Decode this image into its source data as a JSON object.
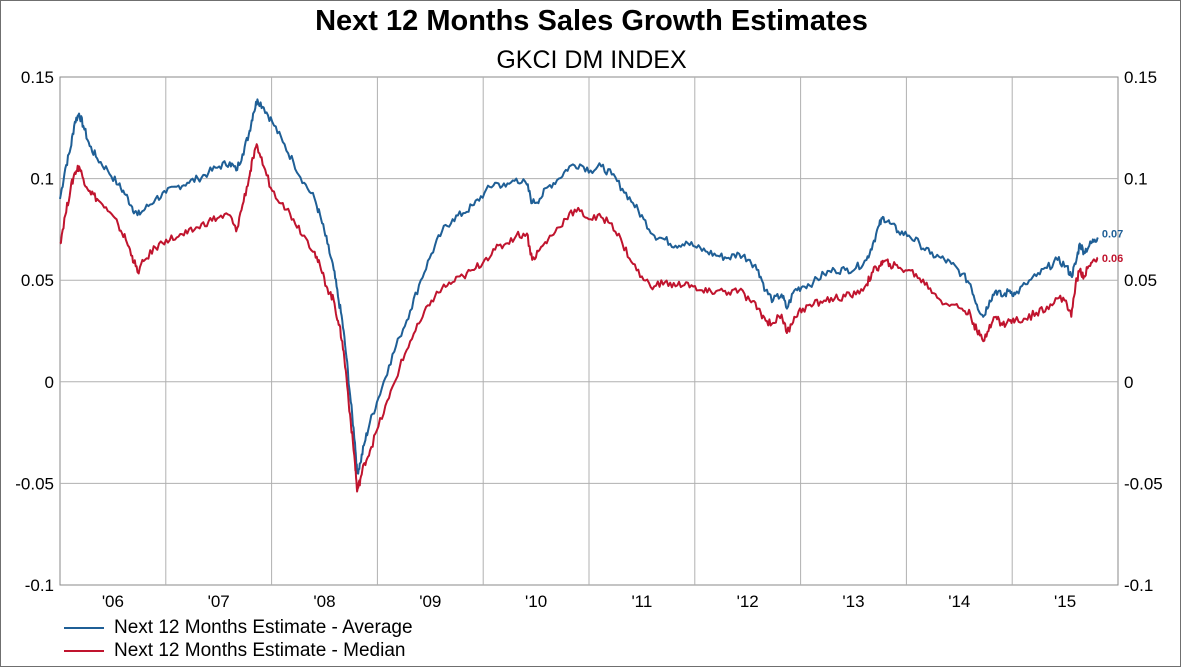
{
  "chart_data": {
    "type": "line",
    "title": "Next 12 Months Sales Growth Estimates",
    "subtitle": "GKCI DM INDEX",
    "y_ticks_left": [
      "0.15",
      "0.1",
      "0.05",
      "0",
      "-0.05",
      "-0.1"
    ],
    "y_ticks_right": [
      "0.15",
      "0.1",
      "0.05",
      "0",
      "-0.05",
      "-0.1"
    ],
    "ylim": [
      -0.1,
      0.15
    ],
    "xlim": [
      2006.0,
      2015.97
    ],
    "x_tick_labels": [
      "'06",
      "'07",
      "'08",
      "'09",
      "'10",
      "'11",
      "'12",
      "'13",
      "'14",
      "'15"
    ],
    "grid": true,
    "legend_position": "bottom-left",
    "series": [
      {
        "name": "Next 12 Months Estimate - Average",
        "color": "#1f5f96",
        "end_label": "0.07",
        "points": [
          [
            2006.0,
            0.09
          ],
          [
            2006.05,
            0.105
          ],
          [
            2006.1,
            0.115
          ],
          [
            2006.14,
            0.128
          ],
          [
            2006.18,
            0.132
          ],
          [
            2006.22,
            0.126
          ],
          [
            2006.28,
            0.116
          ],
          [
            2006.35,
            0.11
          ],
          [
            2006.45,
            0.104
          ],
          [
            2006.55,
            0.097
          ],
          [
            2006.62,
            0.092
          ],
          [
            2006.68,
            0.086
          ],
          [
            2006.73,
            0.082
          ],
          [
            2006.8,
            0.085
          ],
          [
            2006.9,
            0.09
          ],
          [
            2007.0,
            0.093
          ],
          [
            2007.1,
            0.096
          ],
          [
            2007.2,
            0.098
          ],
          [
            2007.3,
            0.1
          ],
          [
            2007.4,
            0.103
          ],
          [
            2007.5,
            0.106
          ],
          [
            2007.6,
            0.108
          ],
          [
            2007.66,
            0.104
          ],
          [
            2007.72,
            0.112
          ],
          [
            2007.78,
            0.122
          ],
          [
            2007.82,
            0.132
          ],
          [
            2007.86,
            0.139
          ],
          [
            2007.92,
            0.135
          ],
          [
            2008.0,
            0.128
          ],
          [
            2008.1,
            0.118
          ],
          [
            2008.2,
            0.108
          ],
          [
            2008.3,
            0.098
          ],
          [
            2008.4,
            0.09
          ],
          [
            2008.46,
            0.08
          ],
          [
            2008.52,
            0.068
          ],
          [
            2008.58,
            0.055
          ],
          [
            2008.62,
            0.042
          ],
          [
            2008.66,
            0.03
          ],
          [
            2008.7,
            0.012
          ],
          [
            2008.74,
            -0.01
          ],
          [
            2008.78,
            -0.03
          ],
          [
            2008.8,
            -0.045
          ],
          [
            2008.83,
            -0.04
          ],
          [
            2008.87,
            -0.03
          ],
          [
            2008.92,
            -0.02
          ],
          [
            2009.0,
            -0.008
          ],
          [
            2009.1,
            0.008
          ],
          [
            2009.2,
            0.022
          ],
          [
            2009.3,
            0.035
          ],
          [
            2009.4,
            0.05
          ],
          [
            2009.5,
            0.063
          ],
          [
            2009.6,
            0.074
          ],
          [
            2009.7,
            0.08
          ],
          [
            2009.8,
            0.083
          ],
          [
            2009.9,
            0.087
          ],
          [
            2010.0,
            0.093
          ],
          [
            2010.1,
            0.098
          ],
          [
            2010.2,
            0.096
          ],
          [
            2010.3,
            0.1
          ],
          [
            2010.4,
            0.097
          ],
          [
            2010.45,
            0.088
          ],
          [
            2010.52,
            0.09
          ],
          [
            2010.6,
            0.096
          ],
          [
            2010.7,
            0.1
          ],
          [
            2010.8,
            0.106
          ],
          [
            2010.9,
            0.107
          ],
          [
            2011.0,
            0.104
          ],
          [
            2011.1,
            0.106
          ],
          [
            2011.2,
            0.102
          ],
          [
            2011.3,
            0.095
          ],
          [
            2011.4,
            0.088
          ],
          [
            2011.5,
            0.08
          ],
          [
            2011.6,
            0.072
          ],
          [
            2011.7,
            0.07
          ],
          [
            2011.8,
            0.067
          ],
          [
            2011.9,
            0.069
          ],
          [
            2012.0,
            0.066
          ],
          [
            2012.1,
            0.064
          ],
          [
            2012.2,
            0.062
          ],
          [
            2012.3,
            0.061
          ],
          [
            2012.4,
            0.063
          ],
          [
            2012.5,
            0.06
          ],
          [
            2012.58,
            0.055
          ],
          [
            2012.65,
            0.045
          ],
          [
            2012.72,
            0.04
          ],
          [
            2012.8,
            0.043
          ],
          [
            2012.85,
            0.036
          ],
          [
            2012.92,
            0.045
          ],
          [
            2013.0,
            0.047
          ],
          [
            2013.1,
            0.049
          ],
          [
            2013.2,
            0.053
          ],
          [
            2013.3,
            0.055
          ],
          [
            2013.4,
            0.055
          ],
          [
            2013.5,
            0.056
          ],
          [
            2013.6,
            0.06
          ],
          [
            2013.66,
            0.068
          ],
          [
            2013.72,
            0.077
          ],
          [
            2013.76,
            0.081
          ],
          [
            2013.82,
            0.078
          ],
          [
            2013.9,
            0.074
          ],
          [
            2014.0,
            0.072
          ],
          [
            2014.1,
            0.068
          ],
          [
            2014.2,
            0.063
          ],
          [
            2014.3,
            0.061
          ],
          [
            2014.4,
            0.058
          ],
          [
            2014.5,
            0.053
          ],
          [
            2014.58,
            0.048
          ],
          [
            2014.64,
            0.038
          ],
          [
            2014.7,
            0.032
          ],
          [
            2014.76,
            0.04
          ],
          [
            2014.82,
            0.045
          ],
          [
            2014.88,
            0.042
          ],
          [
            2014.95,
            0.045
          ],
          [
            2015.0,
            0.043
          ],
          [
            2015.1,
            0.048
          ],
          [
            2015.2,
            0.052
          ],
          [
            2015.3,
            0.056
          ],
          [
            2015.4,
            0.06
          ],
          [
            2015.48,
            0.057
          ],
          [
            2015.53,
            0.052
          ],
          [
            2015.57,
            0.058
          ],
          [
            2015.61,
            0.068
          ],
          [
            2015.65,
            0.064
          ],
          [
            2015.7,
            0.067
          ],
          [
            2015.75,
            0.07
          ],
          [
            2015.78,
            0.071
          ]
        ]
      },
      {
        "name": "Next 12 Months Estimate - Median",
        "color": "#c0142e",
        "end_label": "0.06",
        "points": [
          [
            2006.0,
            0.068
          ],
          [
            2006.05,
            0.082
          ],
          [
            2006.1,
            0.095
          ],
          [
            2006.14,
            0.103
          ],
          [
            2006.18,
            0.106
          ],
          [
            2006.22,
            0.1
          ],
          [
            2006.28,
            0.094
          ],
          [
            2006.35,
            0.09
          ],
          [
            2006.45,
            0.084
          ],
          [
            2006.55,
            0.077
          ],
          [
            2006.62,
            0.07
          ],
          [
            2006.68,
            0.062
          ],
          [
            2006.73,
            0.054
          ],
          [
            2006.8,
            0.06
          ],
          [
            2006.9,
            0.066
          ],
          [
            2007.0,
            0.07
          ],
          [
            2007.1,
            0.071
          ],
          [
            2007.2,
            0.073
          ],
          [
            2007.3,
            0.076
          ],
          [
            2007.4,
            0.079
          ],
          [
            2007.5,
            0.081
          ],
          [
            2007.6,
            0.082
          ],
          [
            2007.66,
            0.074
          ],
          [
            2007.72,
            0.087
          ],
          [
            2007.78,
            0.1
          ],
          [
            2007.82,
            0.11
          ],
          [
            2007.86,
            0.116
          ],
          [
            2007.92,
            0.106
          ],
          [
            2008.0,
            0.094
          ],
          [
            2008.1,
            0.088
          ],
          [
            2008.2,
            0.08
          ],
          [
            2008.3,
            0.072
          ],
          [
            2008.4,
            0.064
          ],
          [
            2008.46,
            0.055
          ],
          [
            2008.52,
            0.046
          ],
          [
            2008.58,
            0.04
          ],
          [
            2008.62,
            0.03
          ],
          [
            2008.66,
            0.02
          ],
          [
            2008.7,
            0.002
          ],
          [
            2008.74,
            -0.02
          ],
          [
            2008.78,
            -0.04
          ],
          [
            2008.8,
            -0.054
          ],
          [
            2008.83,
            -0.048
          ],
          [
            2008.87,
            -0.04
          ],
          [
            2008.92,
            -0.034
          ],
          [
            2009.0,
            -0.022
          ],
          [
            2009.1,
            -0.008
          ],
          [
            2009.2,
            0.007
          ],
          [
            2009.3,
            0.02
          ],
          [
            2009.4,
            0.03
          ],
          [
            2009.5,
            0.04
          ],
          [
            2009.6,
            0.046
          ],
          [
            2009.7,
            0.049
          ],
          [
            2009.8,
            0.052
          ],
          [
            2009.9,
            0.055
          ],
          [
            2010.0,
            0.06
          ],
          [
            2010.1,
            0.065
          ],
          [
            2010.2,
            0.068
          ],
          [
            2010.3,
            0.072
          ],
          [
            2010.4,
            0.073
          ],
          [
            2010.45,
            0.06
          ],
          [
            2010.52,
            0.065
          ],
          [
            2010.6,
            0.07
          ],
          [
            2010.7,
            0.076
          ],
          [
            2010.8,
            0.083
          ],
          [
            2010.9,
            0.084
          ],
          [
            2011.0,
            0.08
          ],
          [
            2011.1,
            0.081
          ],
          [
            2011.2,
            0.078
          ],
          [
            2011.3,
            0.068
          ],
          [
            2011.4,
            0.058
          ],
          [
            2011.5,
            0.05
          ],
          [
            2011.6,
            0.047
          ],
          [
            2011.7,
            0.049
          ],
          [
            2011.8,
            0.047
          ],
          [
            2011.9,
            0.049
          ],
          [
            2012.0,
            0.045
          ],
          [
            2012.1,
            0.044
          ],
          [
            2012.2,
            0.045
          ],
          [
            2012.3,
            0.044
          ],
          [
            2012.4,
            0.045
          ],
          [
            2012.5,
            0.04
          ],
          [
            2012.58,
            0.036
          ],
          [
            2012.65,
            0.03
          ],
          [
            2012.72,
            0.029
          ],
          [
            2012.8,
            0.033
          ],
          [
            2012.85,
            0.024
          ],
          [
            2012.92,
            0.032
          ],
          [
            2013.0,
            0.036
          ],
          [
            2013.1,
            0.038
          ],
          [
            2013.2,
            0.04
          ],
          [
            2013.3,
            0.041
          ],
          [
            2013.4,
            0.042
          ],
          [
            2013.5,
            0.043
          ],
          [
            2013.6,
            0.048
          ],
          [
            2013.66,
            0.054
          ],
          [
            2013.72,
            0.057
          ],
          [
            2013.76,
            0.059
          ],
          [
            2013.82,
            0.058
          ],
          [
            2013.9,
            0.056
          ],
          [
            2014.0,
            0.055
          ],
          [
            2014.1,
            0.051
          ],
          [
            2014.2,
            0.046
          ],
          [
            2014.3,
            0.04
          ],
          [
            2014.4,
            0.038
          ],
          [
            2014.5,
            0.036
          ],
          [
            2014.58,
            0.033
          ],
          [
            2014.64,
            0.025
          ],
          [
            2014.7,
            0.02
          ],
          [
            2014.76,
            0.028
          ],
          [
            2014.82,
            0.032
          ],
          [
            2014.88,
            0.028
          ],
          [
            2014.95,
            0.03
          ],
          [
            2015.0,
            0.03
          ],
          [
            2015.1,
            0.031
          ],
          [
            2015.2,
            0.034
          ],
          [
            2015.3,
            0.037
          ],
          [
            2015.4,
            0.041
          ],
          [
            2015.48,
            0.04
          ],
          [
            2015.53,
            0.032
          ],
          [
            2015.57,
            0.048
          ],
          [
            2015.61,
            0.055
          ],
          [
            2015.65,
            0.052
          ],
          [
            2015.7,
            0.057
          ],
          [
            2015.75,
            0.06
          ],
          [
            2015.78,
            0.061
          ]
        ]
      }
    ]
  }
}
